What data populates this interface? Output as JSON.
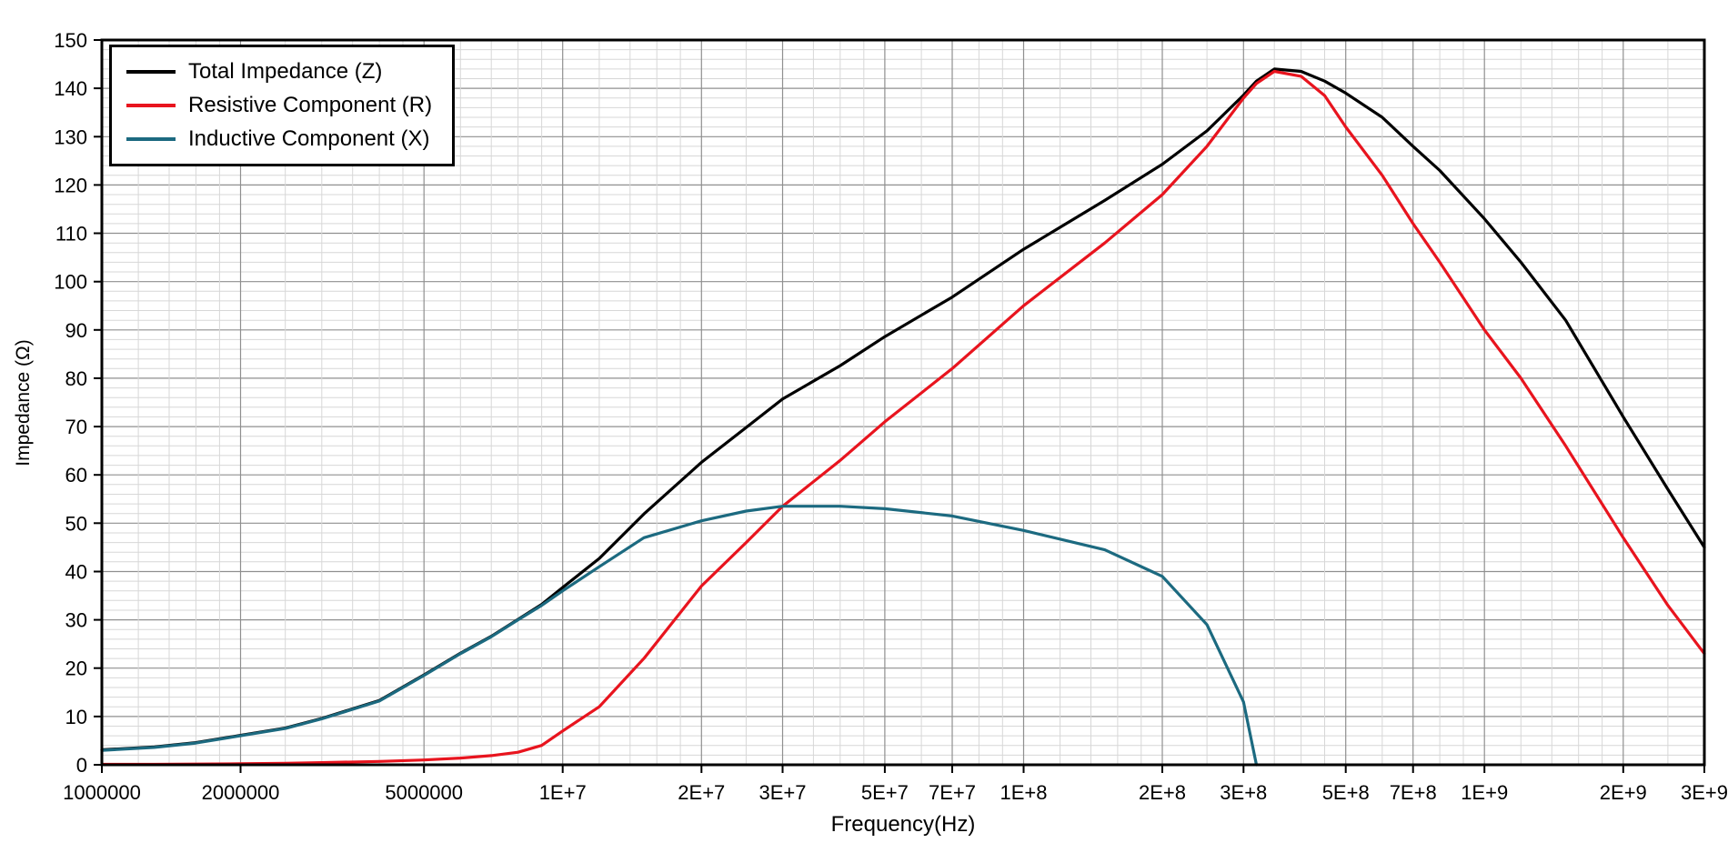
{
  "chart_data": {
    "type": "line",
    "title": "",
    "xlabel": "Frequency(Hz)",
    "ylabel": "Impedance (Ω)",
    "x_scale": "log",
    "xlim": [
      1000000,
      3000000000
    ],
    "ylim": [
      0,
      150
    ],
    "legend_position": "top-left",
    "grid": {
      "on": true,
      "y_major_step": 10,
      "y_minor_step": 2,
      "x_mantissas": [
        1,
        1.2,
        1.4,
        1.6,
        1.8,
        2,
        2.5,
        3,
        3.5,
        4,
        4.5,
        5,
        6,
        7,
        8,
        9
      ],
      "major_color": "#8f8f8f",
      "minor_color": "#d7d7d7",
      "frame_color": "#000000"
    },
    "x_ticks": [
      {
        "v": 1000000,
        "label": "1000000"
      },
      {
        "v": 2000000,
        "label": "2000000"
      },
      {
        "v": 5000000,
        "label": "5000000"
      },
      {
        "v": 10000000,
        "label": "1E+7"
      },
      {
        "v": 20000000,
        "label": "2E+7"
      },
      {
        "v": 30000000,
        "label": "3E+7"
      },
      {
        "v": 50000000,
        "label": "5E+7"
      },
      {
        "v": 70000000,
        "label": "7E+7"
      },
      {
        "v": 100000000,
        "label": "1E+8"
      },
      {
        "v": 200000000,
        "label": "2E+8"
      },
      {
        "v": 300000000,
        "label": "3E+8"
      },
      {
        "v": 500000000,
        "label": "5E+8"
      },
      {
        "v": 700000000,
        "label": "7E+8"
      },
      {
        "v": 1000000000,
        "label": "1E+9"
      },
      {
        "v": 2000000000,
        "label": "2E+9"
      },
      {
        "v": 3000000000,
        "label": "3E+9"
      }
    ],
    "y_ticks": [
      {
        "v": 0,
        "label": "0"
      },
      {
        "v": 10,
        "label": "10"
      },
      {
        "v": 20,
        "label": "20"
      },
      {
        "v": 30,
        "label": "30"
      },
      {
        "v": 40,
        "label": "40"
      },
      {
        "v": 50,
        "label": "50"
      },
      {
        "v": 60,
        "label": "60"
      },
      {
        "v": 70,
        "label": "70"
      },
      {
        "v": 80,
        "label": "80"
      },
      {
        "v": 90,
        "label": "90"
      },
      {
        "v": 100,
        "label": "100"
      },
      {
        "v": 110,
        "label": "110"
      },
      {
        "v": 120,
        "label": "120"
      },
      {
        "v": 130,
        "label": "130"
      },
      {
        "v": 140,
        "label": "140"
      },
      {
        "v": 150,
        "label": "150"
      }
    ],
    "series": [
      {
        "id": "z",
        "name": "Total Impedance (Z)",
        "color": "#000000",
        "x": [
          1000000,
          1300000,
          1600000,
          2000000,
          2500000,
          3000000,
          4000000,
          5000000,
          6000000,
          7000000,
          8000000,
          9000000,
          10000000,
          12000000,
          15000000,
          20000000,
          25000000,
          30000000,
          40000000,
          50000000,
          70000000,
          100000000,
          150000000,
          200000000,
          250000000,
          300000000,
          320000000,
          350000000,
          400000000,
          450000000,
          500000000,
          600000000,
          700000000,
          800000000,
          1000000000,
          1200000000,
          1500000000,
          2000000000,
          2500000000,
          3000000000
        ],
        "y": [
          3.1,
          3.7,
          4.6,
          6.1,
          7.6,
          9.6,
          13.3,
          18.6,
          23.1,
          26.6,
          30.1,
          33.2,
          36.7,
          42.7,
          51.9,
          62.6,
          69.8,
          75.7,
          82.6,
          88.6,
          96.8,
          106.7,
          116.8,
          124.3,
          131.2,
          138.6,
          141.5,
          144,
          143.5,
          141.5,
          139,
          134,
          128,
          123,
          113,
          104,
          92,
          72,
          57,
          45
        ]
      },
      {
        "id": "r",
        "name": "Resistive Component (R)",
        "color": "#e8141e",
        "x": [
          1000000,
          1300000,
          1600000,
          2000000,
          2500000,
          3000000,
          4000000,
          5000000,
          6000000,
          7000000,
          8000000,
          9000000,
          10000000,
          12000000,
          15000000,
          20000000,
          25000000,
          30000000,
          40000000,
          50000000,
          70000000,
          100000000,
          150000000,
          200000000,
          250000000,
          300000000,
          320000000,
          350000000,
          400000000,
          450000000,
          500000000,
          600000000,
          700000000,
          800000000,
          1000000000,
          1200000000,
          1500000000,
          2000000000,
          2500000000,
          3000000000
        ],
        "y": [
          0.1,
          0.1,
          0.15,
          0.2,
          0.3,
          0.45,
          0.7,
          1,
          1.4,
          1.9,
          2.6,
          4,
          7,
          12,
          22,
          37,
          46,
          53.5,
          63,
          71,
          82,
          95,
          108,
          118,
          128,
          138,
          141,
          143.5,
          142.5,
          138.5,
          132,
          122,
          112,
          104,
          90,
          80,
          66,
          47,
          33,
          23
        ]
      },
      {
        "id": "x",
        "name": "Inductive Component (X)",
        "color": "#1c6a80",
        "x": [
          1000000,
          1300000,
          1600000,
          2000000,
          2500000,
          3000000,
          4000000,
          5000000,
          6000000,
          7000000,
          8000000,
          9000000,
          10000000,
          12000000,
          15000000,
          20000000,
          25000000,
          30000000,
          40000000,
          50000000,
          70000000,
          100000000,
          150000000,
          200000000,
          250000000,
          300000000,
          320000000
        ],
        "y": [
          3,
          3.6,
          4.5,
          6,
          7.5,
          9.5,
          13.2,
          18.5,
          23,
          26.5,
          30,
          33,
          36,
          41,
          47,
          50.5,
          52.5,
          53.5,
          53.5,
          53,
          51.5,
          48.5,
          44.5,
          39,
          29,
          13,
          0
        ]
      }
    ]
  }
}
